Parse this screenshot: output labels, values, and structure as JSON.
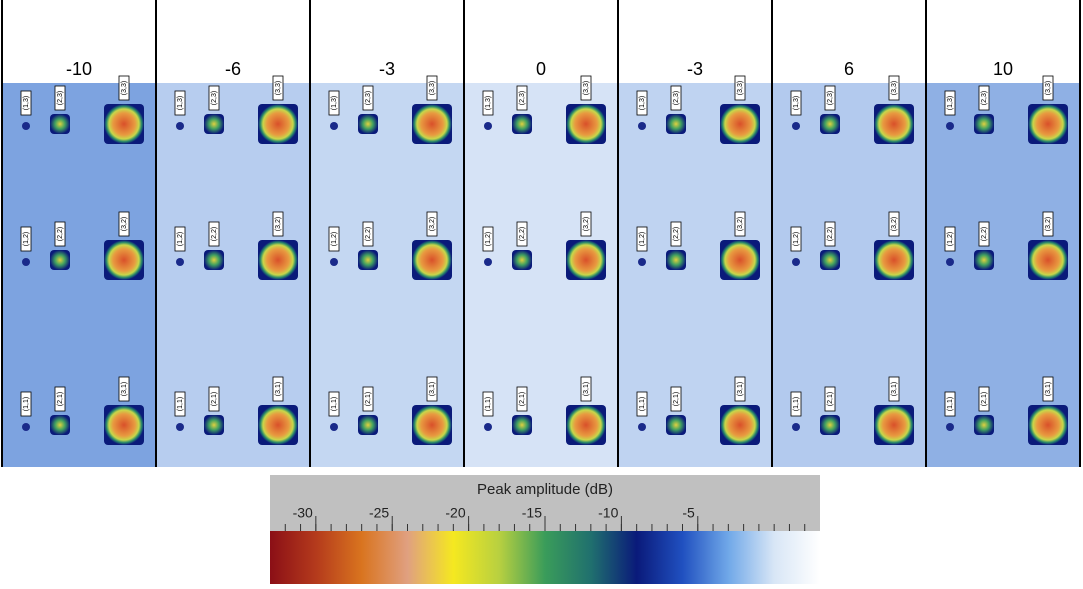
{
  "panels": [
    {
      "title": "-10",
      "color": "#7da3e0"
    },
    {
      "title": "-6",
      "color": "#b7cdef"
    },
    {
      "title": "-3",
      "color": "#c4d7f2"
    },
    {
      "title": "0",
      "color": "#d6e3f6"
    },
    {
      "title": "-3",
      "color": "#bfd3f1"
    },
    {
      "title": "6",
      "color": "#b3caee"
    },
    {
      "title": "10",
      "color": "#8fb0e4"
    }
  ],
  "defect_labels": [
    [
      "(1,3)",
      "(2,3)",
      "(3,3)"
    ],
    [
      "(1,2)",
      "(2,2)",
      "(3,2)"
    ],
    [
      "(1,1)",
      "(2,1)",
      "(3,1)"
    ]
  ],
  "colorbar": {
    "title": "Peak amplitude (dB)",
    "ticks": [
      -30,
      -25,
      -20,
      -15,
      -10,
      -5
    ],
    "range": [
      -33,
      3
    ],
    "minor_step": 1,
    "colors": [
      "#8b0f16",
      "#b43a1c",
      "#d9741f",
      "#e0a080",
      "#f5e820",
      "#b8d040",
      "#3a9c5a",
      "#20706e",
      "#0a1a7a",
      "#2050c0",
      "#70a8e8",
      "#d8e6f6",
      "#ffffff"
    ]
  }
}
